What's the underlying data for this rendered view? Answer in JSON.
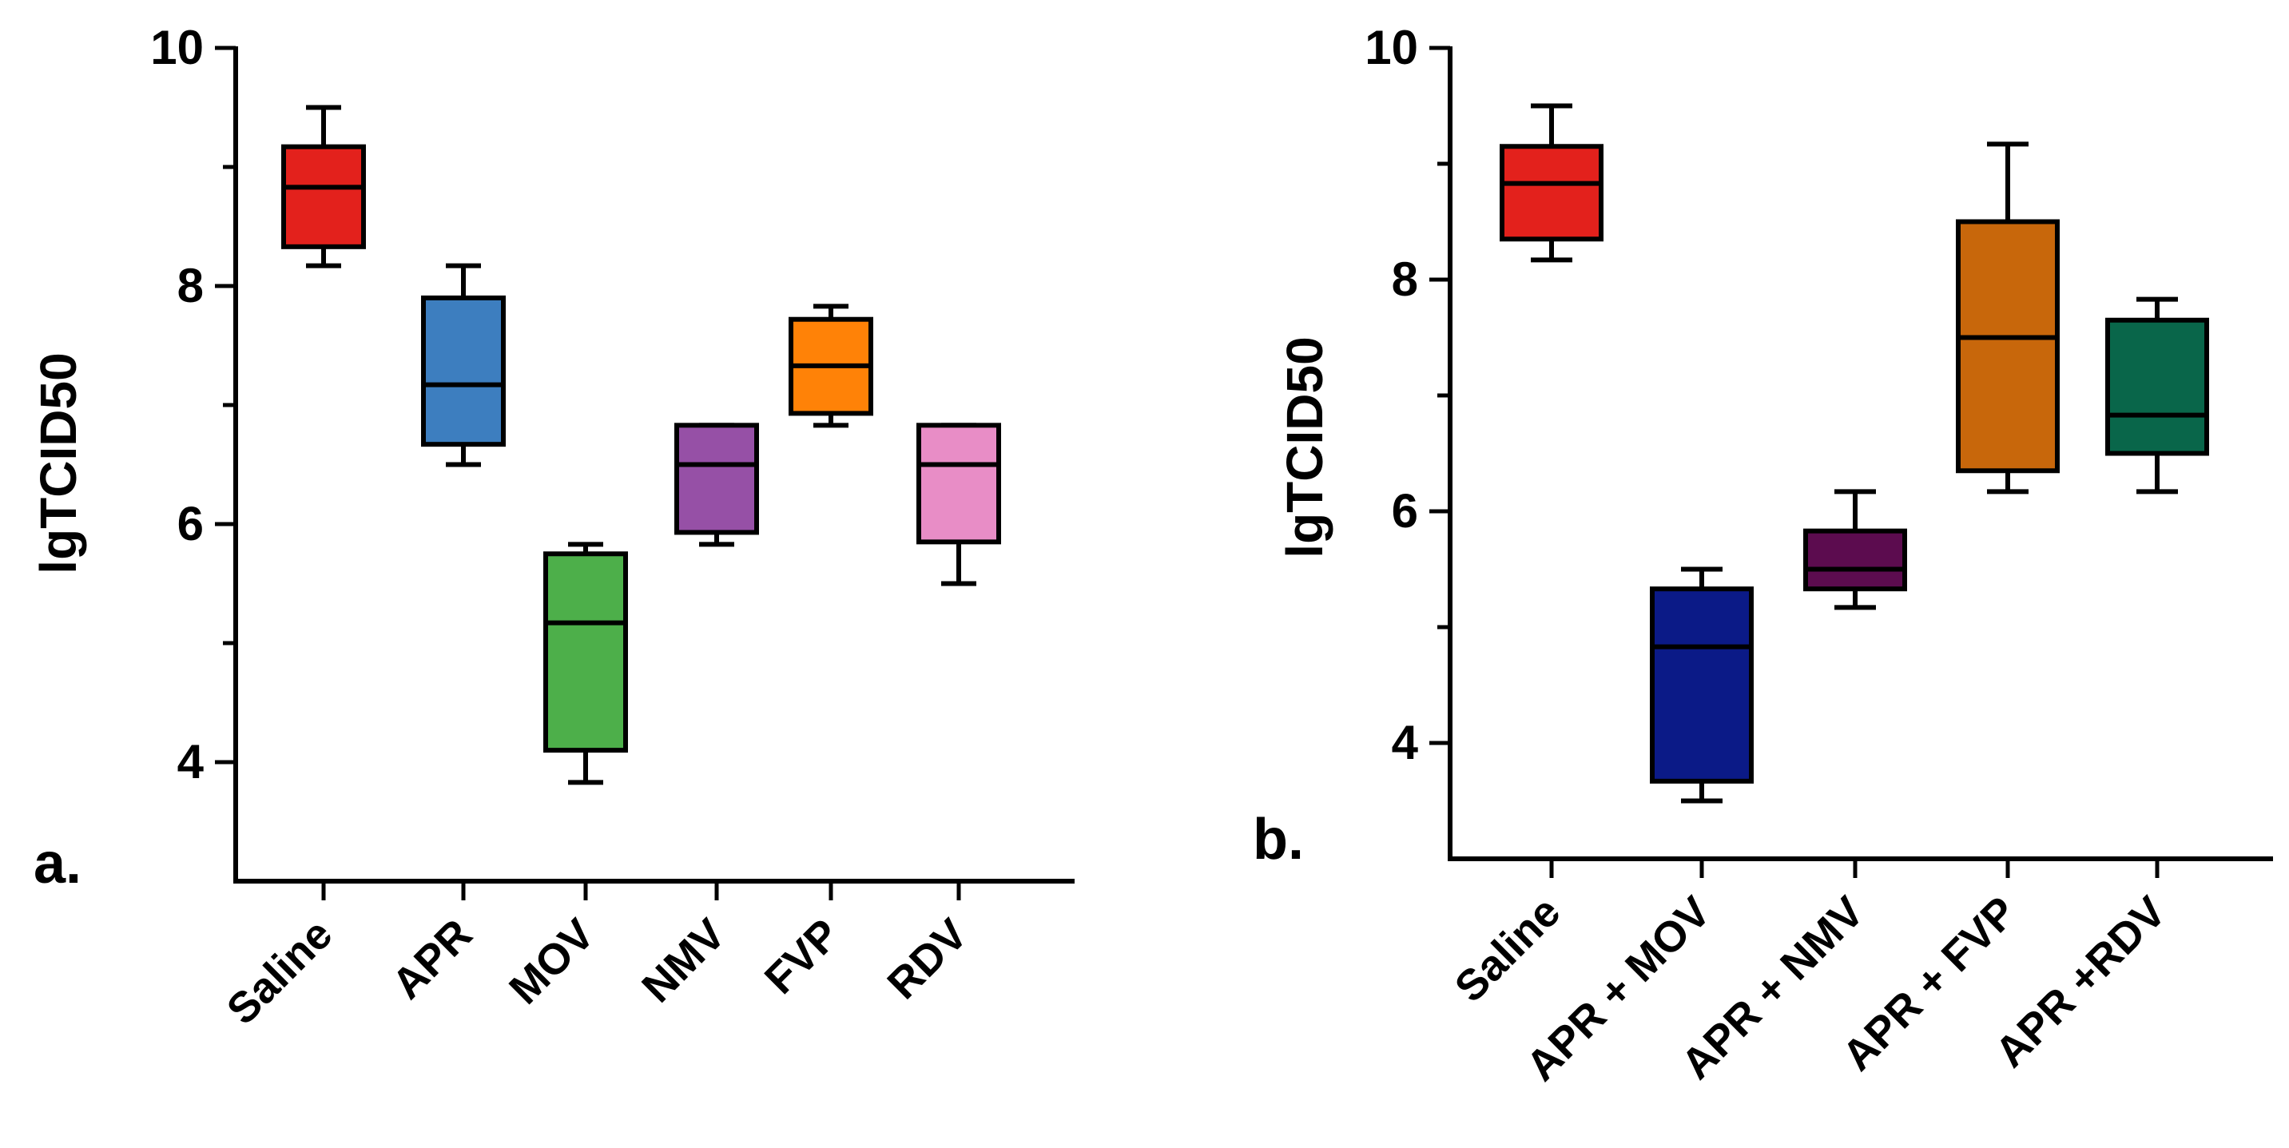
{
  "chart_data": [
    {
      "type": "box",
      "panel_label": "a.",
      "ylabel": "lgTCID50",
      "ylim": [
        3.0,
        10.0
      ],
      "yticks": [
        "4",
        "6",
        "8",
        "10"
      ],
      "categories": [
        "Saline",
        "APR",
        "MOV",
        "NMV",
        "FVP",
        "RDV"
      ],
      "boxes": [
        {
          "name": "Saline",
          "min": 8.17,
          "q1": 8.33,
          "median": 8.83,
          "q3": 9.17,
          "max": 9.5,
          "color": "#e3211c"
        },
        {
          "name": "APR",
          "min": 6.5,
          "q1": 6.67,
          "median": 7.17,
          "q3": 7.9,
          "max": 8.17,
          "color": "#3d7ebf"
        },
        {
          "name": "MOV",
          "min": 3.83,
          "q1": 4.1,
          "median": 5.17,
          "q3": 5.75,
          "max": 5.83,
          "color": "#4daf4a"
        },
        {
          "name": "NMV",
          "min": 5.83,
          "q1": 5.93,
          "median": 6.5,
          "q3": 6.83,
          "max": 6.83,
          "color": "#9650a6"
        },
        {
          "name": "FVP",
          "min": 6.83,
          "q1": 6.93,
          "median": 7.33,
          "q3": 7.72,
          "max": 7.83,
          "color": "#ff8207"
        },
        {
          "name": "RDV",
          "min": 5.5,
          "q1": 5.85,
          "median": 6.5,
          "q3": 6.83,
          "max": 6.83,
          "color": "#e88dc6"
        }
      ]
    },
    {
      "type": "box",
      "panel_label": "b.",
      "ylabel": "lgTCID50",
      "ylim": [
        3.0,
        10.0
      ],
      "yticks": [
        "4",
        "6",
        "8",
        "10"
      ],
      "categories": [
        "Saline",
        "APR + MOV",
        "APR + NMV",
        "APR + FVP",
        "APR +RDV"
      ],
      "boxes": [
        {
          "name": "Saline",
          "min": 8.17,
          "q1": 8.35,
          "median": 8.83,
          "q3": 9.15,
          "max": 9.5,
          "color": "#e3211c"
        },
        {
          "name": "APR + MOV",
          "min": 3.5,
          "q1": 3.67,
          "median": 4.83,
          "q3": 5.33,
          "max": 5.5,
          "color": "#0b1a87"
        },
        {
          "name": "APR + NMV",
          "min": 5.17,
          "q1": 5.33,
          "median": 5.5,
          "q3": 5.83,
          "max": 6.17,
          "color": "#5c0c4f"
        },
        {
          "name": "APR + FVP",
          "min": 6.17,
          "q1": 6.35,
          "median": 7.5,
          "q3": 8.5,
          "max": 9.17,
          "color": "#c8670b"
        },
        {
          "name": "APR +RDV",
          "min": 6.17,
          "q1": 6.5,
          "median": 6.83,
          "q3": 7.65,
          "max": 7.83,
          "color": "#09664a"
        }
      ]
    }
  ]
}
